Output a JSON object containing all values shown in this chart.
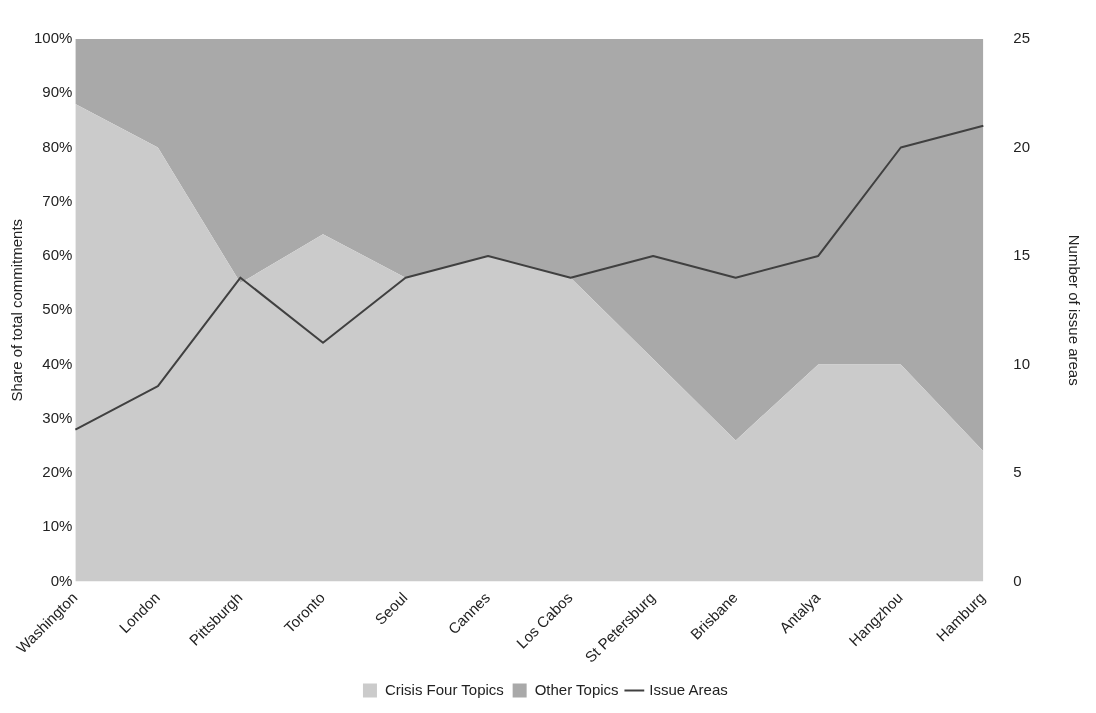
{
  "chart_data": {
    "type": "area",
    "stacked": true,
    "ylabel": "Share of total commitments",
    "y2label": "Number of issue areas",
    "categories": [
      "Washington",
      "London",
      "Pittsburgh",
      "Toronto",
      "Seoul",
      "Cannes",
      "Los Cabos",
      "St Petersburg",
      "Brisbane",
      "Antalya",
      "Hangzhou",
      "Hamburg"
    ],
    "series": [
      {
        "name": "Crisis Four Topics",
        "color": "#cbcbcb",
        "values": [
          88,
          80,
          55,
          64,
          56,
          60,
          56,
          41,
          26,
          40,
          40,
          24
        ]
      },
      {
        "name": "Other Topics",
        "color": "#a9a9a9",
        "values": [
          12,
          20,
          45,
          36,
          44,
          40,
          44,
          59,
          74,
          60,
          60,
          76
        ]
      },
      {
        "name": "Issue Areas",
        "type": "line",
        "axis": "y2",
        "color": "#404040",
        "values": [
          7,
          9,
          14,
          11,
          14,
          15,
          14,
          15,
          14,
          15,
          20,
          21
        ]
      }
    ],
    "ylim": [
      0,
      100
    ],
    "yticks": [
      {
        "value": 0,
        "label": "0%"
      },
      {
        "value": 10,
        "label": "10%"
      },
      {
        "value": 20,
        "label": "20%"
      },
      {
        "value": 30,
        "label": "30%"
      },
      {
        "value": 40,
        "label": "40%"
      },
      {
        "value": 50,
        "label": "50%"
      },
      {
        "value": 60,
        "label": "60%"
      },
      {
        "value": 70,
        "label": "70%"
      },
      {
        "value": 80,
        "label": "80%"
      },
      {
        "value": 90,
        "label": "90%"
      },
      {
        "value": 100,
        "label": "100%"
      }
    ],
    "y2lim": [
      0,
      25
    ],
    "y2ticks": [
      0,
      5,
      10,
      15,
      20,
      25
    ],
    "grid": false,
    "legend": "bottom",
    "marker": "none",
    "line_style": "solid"
  }
}
